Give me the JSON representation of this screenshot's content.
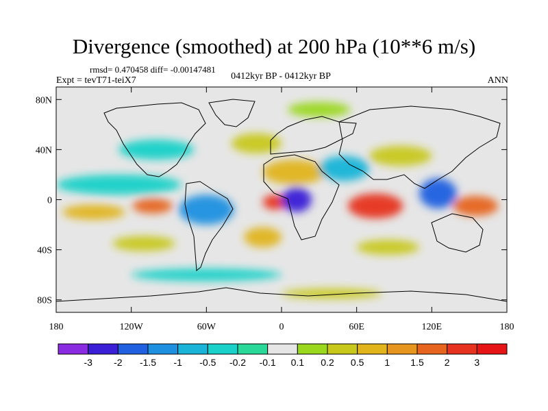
{
  "title": "Divergence (smoothed) at 200 hPa (10**6 m/s)",
  "stats": {
    "rmsd_label": "rmsd= 0.470458 diff= -0.00147481"
  },
  "experiment": "Expt = tevT71-teiX7",
  "period": "0412kyr BP - 0412kyr BP",
  "season": "ANN",
  "map": {
    "projection": "cylindrical-equidistant",
    "lon_range": [
      -180,
      180
    ],
    "lat_range": [
      -90,
      90
    ],
    "lat_ticks": [
      {
        "lat": 80,
        "label": "80N"
      },
      {
        "lat": 40,
        "label": "40N"
      },
      {
        "lat": 0,
        "label": "0"
      },
      {
        "lat": -40,
        "label": "40S"
      },
      {
        "lat": -80,
        "label": "80S"
      }
    ],
    "lon_ticks": [
      {
        "lon": -180,
        "label": "180"
      },
      {
        "lon": -120,
        "label": "120W"
      },
      {
        "lon": -60,
        "label": "60W"
      },
      {
        "lon": 0,
        "label": "0"
      },
      {
        "lon": 60,
        "label": "60E"
      },
      {
        "lon": 120,
        "label": "120E"
      },
      {
        "lon": 180,
        "label": "180"
      }
    ]
  },
  "colorbar": {
    "colors": [
      "#8a2be2",
      "#3a1fd6",
      "#1f5fe0",
      "#1e90e0",
      "#19b4d8",
      "#19d1c8",
      "#2ad89a",
      "#e6e6e6",
      "#9ad81e",
      "#c8c81a",
      "#e0b41a",
      "#e6961e",
      "#e6641e",
      "#e6321e",
      "#e61414"
    ],
    "labels": [
      "-3",
      "-2",
      "-1.5",
      "-1",
      "-0.5",
      "-0.2",
      "-0.1",
      "0.1",
      "0.2",
      "0.5",
      "1",
      "1.5",
      "2",
      "3"
    ]
  },
  "regions": [
    {
      "name": "pacific-convergence-west",
      "lon": -150,
      "lat": -10,
      "rlon": 25,
      "rlat": 6,
      "level": 10
    },
    {
      "name": "pacific-divergence-east",
      "lon": -103,
      "lat": -5,
      "rlon": 16,
      "rlat": 6,
      "level": 12
    },
    {
      "name": "equatorial-belt-north-pacific",
      "lon": -130,
      "lat": 12,
      "rlon": 50,
      "rlat": 8,
      "level": 5
    },
    {
      "name": "south-america-convergence",
      "lon": -60,
      "lat": -8,
      "rlon": 22,
      "rlat": 12,
      "level": 3
    },
    {
      "name": "africa-divergence-core",
      "lon": -5,
      "lat": -2,
      "rlon": 10,
      "rlat": 6,
      "level": 13
    },
    {
      "name": "central-africa-convergence",
      "lon": 12,
      "lat": 0,
      "rlon": 12,
      "rlat": 10,
      "level": 1
    },
    {
      "name": "indian-ocean-divergence",
      "lon": 75,
      "lat": -5,
      "rlon": 22,
      "rlat": 10,
      "level": 13
    },
    {
      "name": "maritime-continent-convergence",
      "lon": 125,
      "lat": 5,
      "rlon": 15,
      "rlat": 12,
      "level": 2
    },
    {
      "name": "west-pacific-divergence",
      "lon": 155,
      "lat": -5,
      "rlon": 18,
      "rlat": 8,
      "level": 12
    },
    {
      "name": "north-africa-divergence",
      "lon": 10,
      "lat": 22,
      "rlon": 25,
      "rlat": 10,
      "level": 10
    },
    {
      "name": "arabia-convergence",
      "lon": 50,
      "lat": 25,
      "rlon": 20,
      "rlat": 10,
      "level": 4
    },
    {
      "name": "asia-divergence",
      "lon": 95,
      "lat": 35,
      "rlon": 25,
      "rlat": 8,
      "level": 9
    },
    {
      "name": "north-atlantic-divergence",
      "lon": -20,
      "lat": 45,
      "rlon": 20,
      "rlat": 8,
      "level": 9
    },
    {
      "name": "arctic-divergence",
      "lon": 30,
      "lat": 72,
      "rlon": 25,
      "rlat": 6,
      "level": 8
    },
    {
      "name": "north-america-convergence",
      "lon": -100,
      "lat": 40,
      "rlon": 30,
      "rlat": 8,
      "level": 5
    },
    {
      "name": "south-atlantic-divergence",
      "lon": -15,
      "lat": -30,
      "rlon": 15,
      "rlat": 8,
      "level": 10
    },
    {
      "name": "south-pacific-divergence",
      "lon": -110,
      "lat": -35,
      "rlon": 25,
      "rlat": 6,
      "level": 9
    },
    {
      "name": "indian-ocean-south-divergence",
      "lon": 85,
      "lat": -38,
      "rlon": 25,
      "rlat": 6,
      "level": 9
    },
    {
      "name": "southern-ocean-convergence",
      "lon": -60,
      "lat": -60,
      "rlon": 60,
      "rlat": 5,
      "level": 5
    },
    {
      "name": "antarctic-divergence",
      "lon": 40,
      "lat": -75,
      "rlon": 40,
      "rlat": 4,
      "level": 9
    }
  ]
}
